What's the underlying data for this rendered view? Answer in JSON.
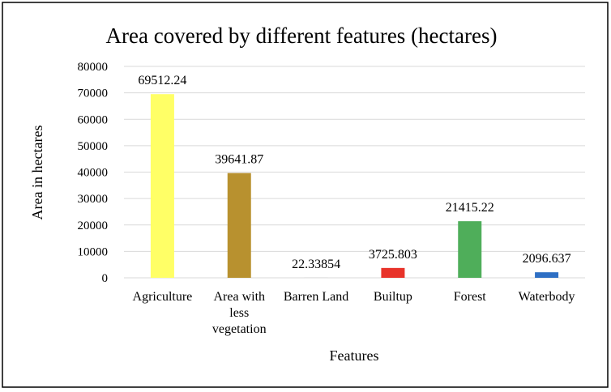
{
  "chart_data": {
    "type": "bar",
    "title": "Area covered by different features (hectares)",
    "xlabel": "Features",
    "ylabel": "Area in hectares",
    "categories": [
      [
        "Agriculture"
      ],
      [
        "Area with",
        "less",
        "vegetation"
      ],
      [
        "Barren Land"
      ],
      [
        "Builtup"
      ],
      [
        "Forest"
      ],
      [
        "Waterbody"
      ]
    ],
    "values": [
      69512.24,
      39641.87,
      22.33854,
      3725.803,
      21415.22,
      2096.637
    ],
    "value_labels": [
      "69512.24",
      "39641.87",
      "22.33854",
      "3725.803",
      "21415.22",
      "2096.637"
    ],
    "colors": [
      "#ffff66",
      "#b8912f",
      "#d9d9d9",
      "#e8332a",
      "#4fae5a",
      "#2e6fc4"
    ],
    "ylim": [
      0,
      80000
    ],
    "yticks": [
      0,
      10000,
      20000,
      30000,
      40000,
      50000,
      60000,
      70000,
      80000
    ],
    "grid": true,
    "legend": "none"
  }
}
